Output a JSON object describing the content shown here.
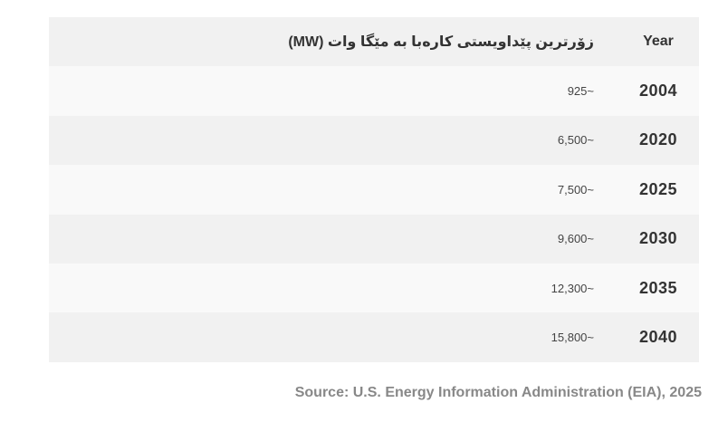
{
  "table": {
    "header": {
      "value_label": "زۆرترین پێداویستی کارەبا بە مێگا وات (MW)",
      "year_label": "Year"
    },
    "rows": [
      {
        "year": "2004",
        "value": "925~"
      },
      {
        "year": "2020",
        "value": "6,500~"
      },
      {
        "year": "2025",
        "value": "7,500~"
      },
      {
        "year": "2030",
        "value": "9,600~"
      },
      {
        "year": "2035",
        "value": "12,300~"
      },
      {
        "year": "2040",
        "value": "15,800~"
      }
    ]
  },
  "footer": {
    "source_text": "Source: U.S. Energy Information Administration (EIA), 2025"
  },
  "colors": {
    "stripe_dark": "#f1f1f1",
    "stripe_light": "#f9f9f9",
    "text_heading": "#333333",
    "text_value": "#444444",
    "text_source": "#888888"
  },
  "chart_data": {
    "type": "table",
    "title": "زۆرترین پێداویستی کارەبا بە مێگا وات (MW)",
    "columns": [
      "زۆرترین پێداویستی کارەبا بە مێگا وات (MW)",
      "Year"
    ],
    "categories": [
      "2004",
      "2020",
      "2025",
      "2030",
      "2035",
      "2040"
    ],
    "values": [
      925,
      6500,
      7500,
      9600,
      12300,
      15800
    ],
    "values_display": [
      "925~",
      "6,500~",
      "7,500~",
      "9,600~",
      "12,300~",
      "15,800~"
    ],
    "ylabel": "MW",
    "source": "Source: U.S. Energy Information Administration (EIA), 2025",
    "layout": "striped rows, year column rightmost (RTL table)"
  }
}
